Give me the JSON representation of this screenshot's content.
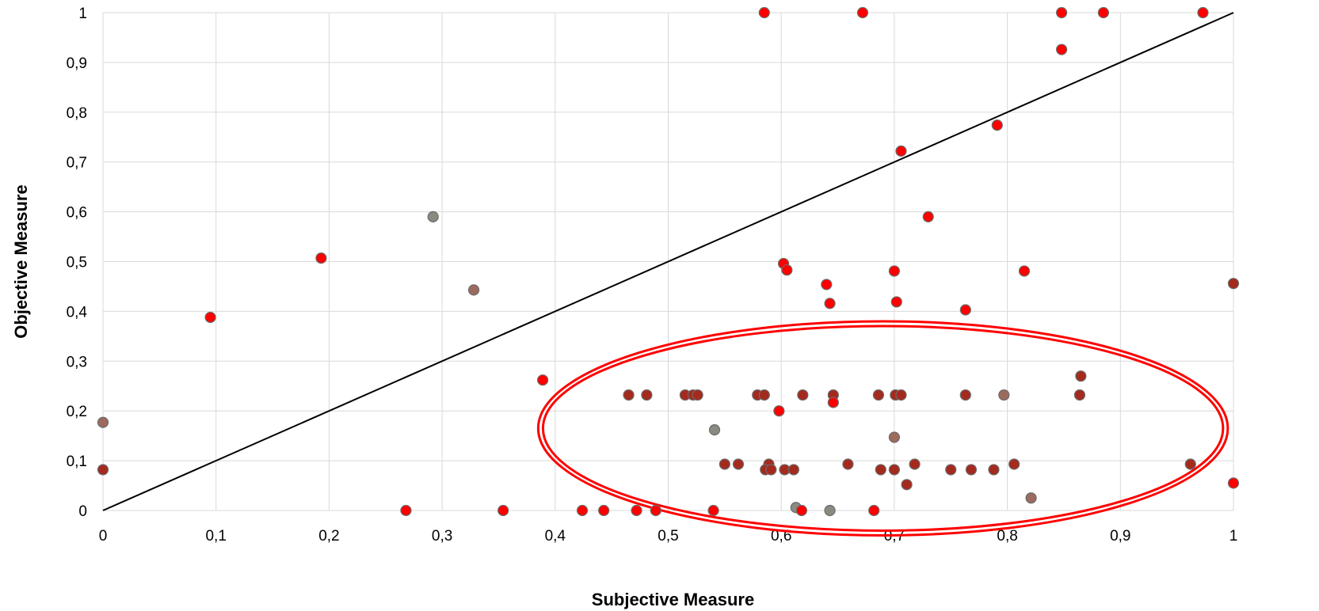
{
  "chart_data": {
    "type": "scatter",
    "xlabel": "Subjective Measure",
    "ylabel": "Objective Measure",
    "xlim": [
      0,
      1
    ],
    "ylim": [
      0,
      1
    ],
    "x_ticks": [
      "0",
      "0,1",
      "0,2",
      "0,3",
      "0,4",
      "0,5",
      "0,6",
      "0,7",
      "0,8",
      "0,9",
      "1"
    ],
    "y_ticks": [
      "0",
      "0,1",
      "0,2",
      "0,3",
      "0,4",
      "0,5",
      "0,6",
      "0,7",
      "0,8",
      "0,9",
      "1"
    ],
    "grid": true,
    "reference_line": {
      "from": [
        0,
        0
      ],
      "to": [
        1,
        1
      ],
      "color": "#000000"
    },
    "annotation": {
      "shape": "ellipse",
      "center": [
        0.69,
        0.165
      ],
      "radius_x": 0.305,
      "radius_y": 0.215,
      "color": "#ff0000"
    },
    "colors": {
      "red": "#ff0000",
      "dark_red": "#a52a1e",
      "brown": "#9c6b5e",
      "gray": "#8a8a80"
    },
    "points": [
      {
        "x": 0.585,
        "y": 1.0,
        "c": "red"
      },
      {
        "x": 0.672,
        "y": 1.0,
        "c": "red"
      },
      {
        "x": 0.848,
        "y": 1.0,
        "c": "red"
      },
      {
        "x": 0.885,
        "y": 1.0,
        "c": "red"
      },
      {
        "x": 0.973,
        "y": 1.0,
        "c": "red"
      },
      {
        "x": 0.848,
        "y": 0.926,
        "c": "red"
      },
      {
        "x": 0.791,
        "y": 0.774,
        "c": "red"
      },
      {
        "x": 0.706,
        "y": 0.722,
        "c": "red"
      },
      {
        "x": 0.73,
        "y": 0.59,
        "c": "red"
      },
      {
        "x": 0.292,
        "y": 0.59,
        "c": "gray"
      },
      {
        "x": 0.193,
        "y": 0.507,
        "c": "red"
      },
      {
        "x": 0.602,
        "y": 0.496,
        "c": "red"
      },
      {
        "x": 0.605,
        "y": 0.483,
        "c": "red"
      },
      {
        "x": 0.7,
        "y": 0.481,
        "c": "red"
      },
      {
        "x": 0.815,
        "y": 0.481,
        "c": "red"
      },
      {
        "x": 0.64,
        "y": 0.454,
        "c": "red"
      },
      {
        "x": 1.0,
        "y": 0.456,
        "c": "dark_red"
      },
      {
        "x": 0.328,
        "y": 0.443,
        "c": "brown"
      },
      {
        "x": 0.643,
        "y": 0.416,
        "c": "red"
      },
      {
        "x": 0.702,
        "y": 0.419,
        "c": "red"
      },
      {
        "x": 0.763,
        "y": 0.403,
        "c": "red"
      },
      {
        "x": 0.095,
        "y": 0.388,
        "c": "red"
      },
      {
        "x": 0.389,
        "y": 0.262,
        "c": "red"
      },
      {
        "x": 0.865,
        "y": 0.27,
        "c": "dark_red"
      },
      {
        "x": 0.465,
        "y": 0.232,
        "c": "dark_red"
      },
      {
        "x": 0.481,
        "y": 0.232,
        "c": "dark_red"
      },
      {
        "x": 0.515,
        "y": 0.232,
        "c": "dark_red"
      },
      {
        "x": 0.522,
        "y": 0.232,
        "c": "dark_red"
      },
      {
        "x": 0.526,
        "y": 0.232,
        "c": "dark_red"
      },
      {
        "x": 0.579,
        "y": 0.232,
        "c": "dark_red"
      },
      {
        "x": 0.585,
        "y": 0.232,
        "c": "dark_red"
      },
      {
        "x": 0.619,
        "y": 0.232,
        "c": "dark_red"
      },
      {
        "x": 0.646,
        "y": 0.232,
        "c": "dark_red"
      },
      {
        "x": 0.686,
        "y": 0.232,
        "c": "dark_red"
      },
      {
        "x": 0.701,
        "y": 0.232,
        "c": "dark_red"
      },
      {
        "x": 0.706,
        "y": 0.232,
        "c": "dark_red"
      },
      {
        "x": 0.763,
        "y": 0.232,
        "c": "dark_red"
      },
      {
        "x": 0.797,
        "y": 0.232,
        "c": "brown"
      },
      {
        "x": 0.864,
        "y": 0.232,
        "c": "dark_red"
      },
      {
        "x": 0.646,
        "y": 0.217,
        "c": "red"
      },
      {
        "x": 0.598,
        "y": 0.2,
        "c": "red"
      },
      {
        "x": 0.541,
        "y": 0.162,
        "c": "gray"
      },
      {
        "x": 0.7,
        "y": 0.147,
        "c": "brown"
      },
      {
        "x": 0.55,
        "y": 0.093,
        "c": "dark_red"
      },
      {
        "x": 0.562,
        "y": 0.093,
        "c": "dark_red"
      },
      {
        "x": 0.589,
        "y": 0.093,
        "c": "dark_red"
      },
      {
        "x": 0.659,
        "y": 0.093,
        "c": "dark_red"
      },
      {
        "x": 0.718,
        "y": 0.093,
        "c": "dark_red"
      },
      {
        "x": 0.806,
        "y": 0.093,
        "c": "dark_red"
      },
      {
        "x": 0.962,
        "y": 0.093,
        "c": "dark_red"
      },
      {
        "x": 0.586,
        "y": 0.082,
        "c": "dark_red"
      },
      {
        "x": 0.591,
        "y": 0.082,
        "c": "dark_red"
      },
      {
        "x": 0.603,
        "y": 0.082,
        "c": "dark_red"
      },
      {
        "x": 0.611,
        "y": 0.082,
        "c": "dark_red"
      },
      {
        "x": 0.688,
        "y": 0.082,
        "c": "dark_red"
      },
      {
        "x": 0.7,
        "y": 0.082,
        "c": "dark_red"
      },
      {
        "x": 0.75,
        "y": 0.082,
        "c": "dark_red"
      },
      {
        "x": 0.768,
        "y": 0.082,
        "c": "dark_red"
      },
      {
        "x": 0.788,
        "y": 0.082,
        "c": "dark_red"
      },
      {
        "x": 0.0,
        "y": 0.082,
        "c": "dark_red"
      },
      {
        "x": 0.0,
        "y": 0.177,
        "c": "brown"
      },
      {
        "x": 0.711,
        "y": 0.052,
        "c": "dark_red"
      },
      {
        "x": 1.0,
        "y": 0.055,
        "c": "red"
      },
      {
        "x": 0.821,
        "y": 0.025,
        "c": "brown"
      },
      {
        "x": 0.613,
        "y": 0.006,
        "c": "gray"
      },
      {
        "x": 0.268,
        "y": 0.0,
        "c": "red"
      },
      {
        "x": 0.354,
        "y": 0.0,
        "c": "red"
      },
      {
        "x": 0.424,
        "y": 0.0,
        "c": "red"
      },
      {
        "x": 0.443,
        "y": 0.0,
        "c": "red"
      },
      {
        "x": 0.472,
        "y": 0.0,
        "c": "red"
      },
      {
        "x": 0.489,
        "y": 0.0,
        "c": "red"
      },
      {
        "x": 0.54,
        "y": 0.0,
        "c": "red"
      },
      {
        "x": 0.618,
        "y": 0.0,
        "c": "red"
      },
      {
        "x": 0.643,
        "y": 0.0,
        "c": "gray"
      },
      {
        "x": 0.682,
        "y": 0.0,
        "c": "red"
      }
    ]
  }
}
